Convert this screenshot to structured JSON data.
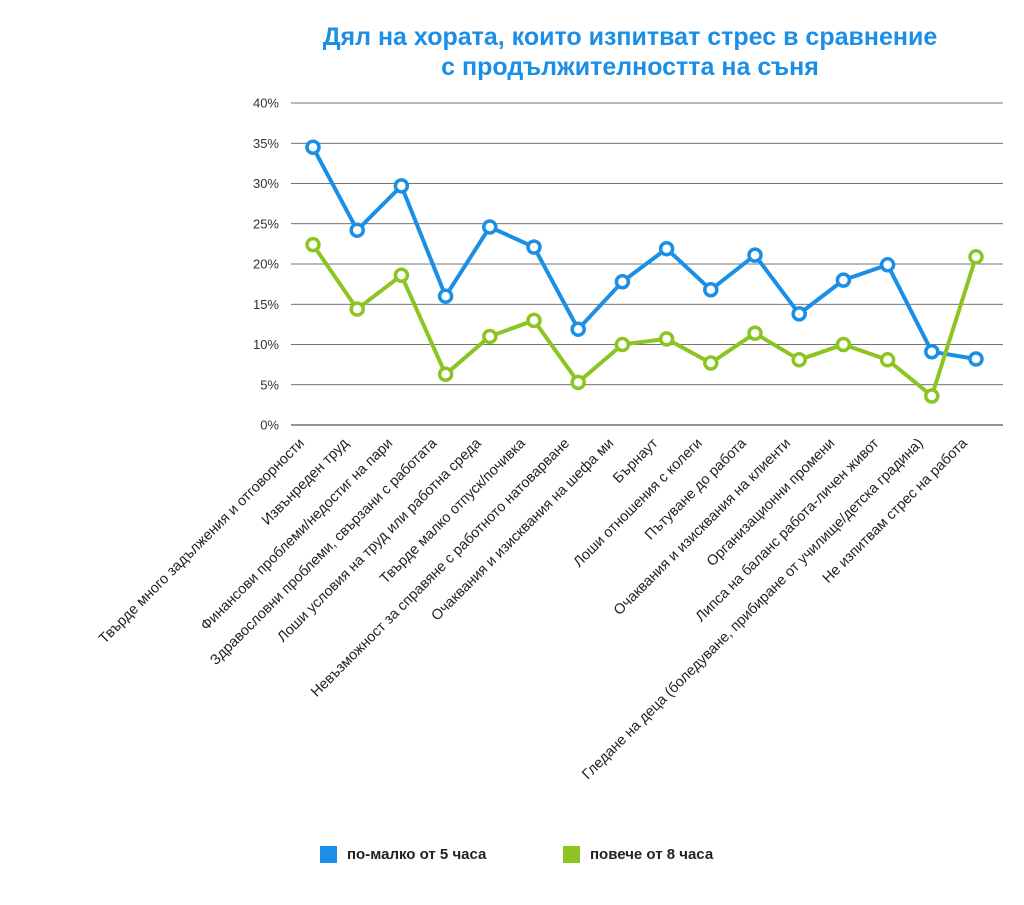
{
  "chart_data": {
    "type": "line",
    "title_lines": [
      "Дял на хората, които изпитват стрес в сравнение",
      "с продължителността на съня"
    ],
    "categories": [
      "Твърде много задължения и отговорности",
      "Извънреден труд",
      "Финансови проблеми/недостиг на пари",
      "Здравословни проблеми, свързани с работата",
      "Лоши условия на труд или работна среда",
      "Твърде малко отпуск/почивка",
      "Невъзможност за справяне с работното натоварване",
      "Очаквания и изисквания на шефа ми",
      "Бърнаут",
      "Лоши отношения с колеги",
      "Пътуване до работа",
      "Очаквания и изисквания на клиенти",
      "Организационни промени",
      "Липса на баланс работа-личен живот",
      "Гледане на деца (боледуване, прибиране от училище/детска градина)",
      "Не изпитвам стрес на работа"
    ],
    "series": [
      {
        "name": "по-малко от 5 часа",
        "color": "#1b8ee6",
        "values": [
          34.5,
          24.2,
          29.7,
          16.0,
          24.6,
          22.1,
          11.9,
          17.8,
          21.9,
          16.8,
          21.1,
          13.8,
          18.0,
          19.9,
          9.1,
          8.2
        ]
      },
      {
        "name": "повече от 8 часа",
        "color": "#8cc521",
        "values": [
          22.4,
          14.4,
          18.6,
          6.3,
          11.0,
          13.0,
          5.3,
          10.0,
          10.7,
          7.7,
          11.4,
          8.1,
          10.0,
          8.1,
          3.6,
          20.9
        ]
      }
    ],
    "y_ticks": [
      "0%",
      "5%",
      "10%",
      "15%",
      "20%",
      "25%",
      "30%",
      "35%",
      "40%"
    ],
    "ylim": [
      0,
      40
    ],
    "grid": true,
    "legend_position": "bottom"
  }
}
